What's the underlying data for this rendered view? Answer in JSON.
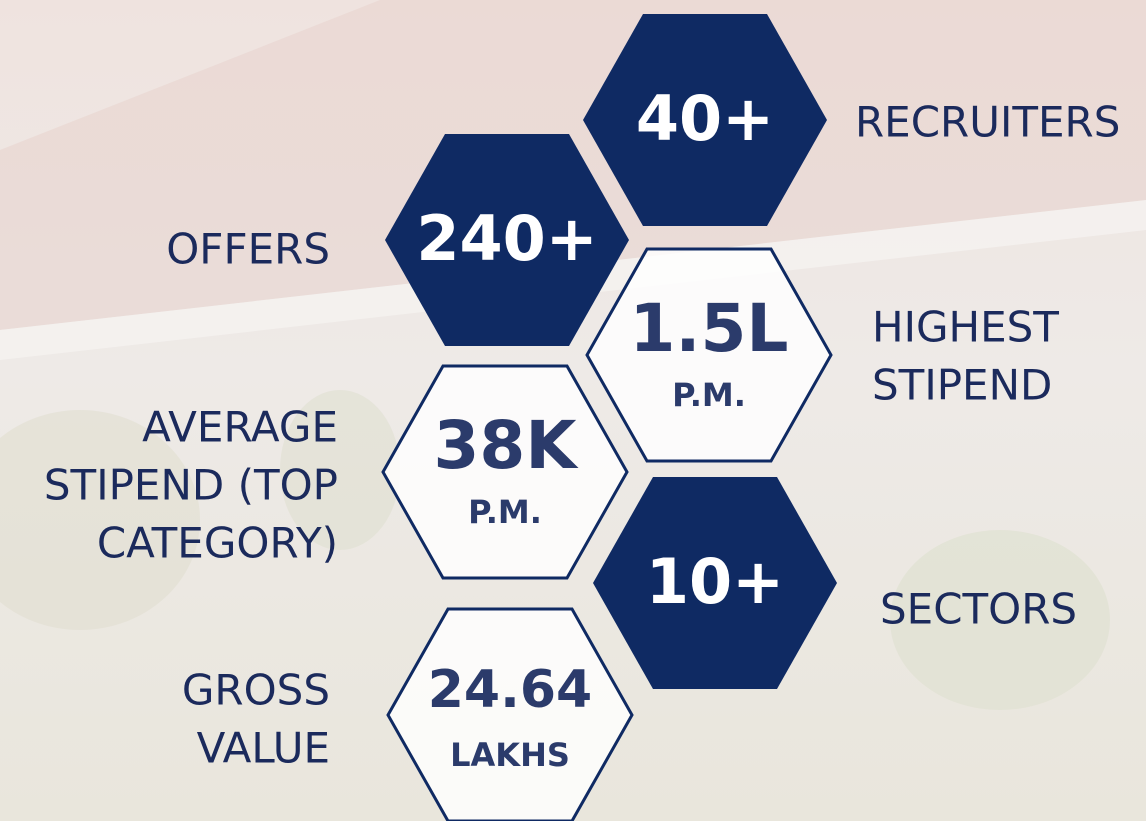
{
  "stats": [
    {
      "value": "40+",
      "label": [
        "RECRUITERS"
      ],
      "style": "filled"
    },
    {
      "value": "240+",
      "label": [
        "OFFERS"
      ],
      "style": "filled"
    },
    {
      "value": "1.5L",
      "unit": "P.M.",
      "label": [
        "HIGHEST",
        "STIPEND"
      ],
      "style": "outline"
    },
    {
      "value": "38K",
      "unit": "P.M.",
      "label": [
        "AVERAGE",
        "STIPEND  (TOP",
        "CATEGORY)"
      ],
      "style": "outline"
    },
    {
      "value": "10+",
      "label": [
        "SECTORS"
      ],
      "style": "filled"
    },
    {
      "value": "24.64",
      "unit": "LAKHS",
      "label": [
        "GROSS",
        "VALUE"
      ],
      "style": "outline"
    }
  ]
}
